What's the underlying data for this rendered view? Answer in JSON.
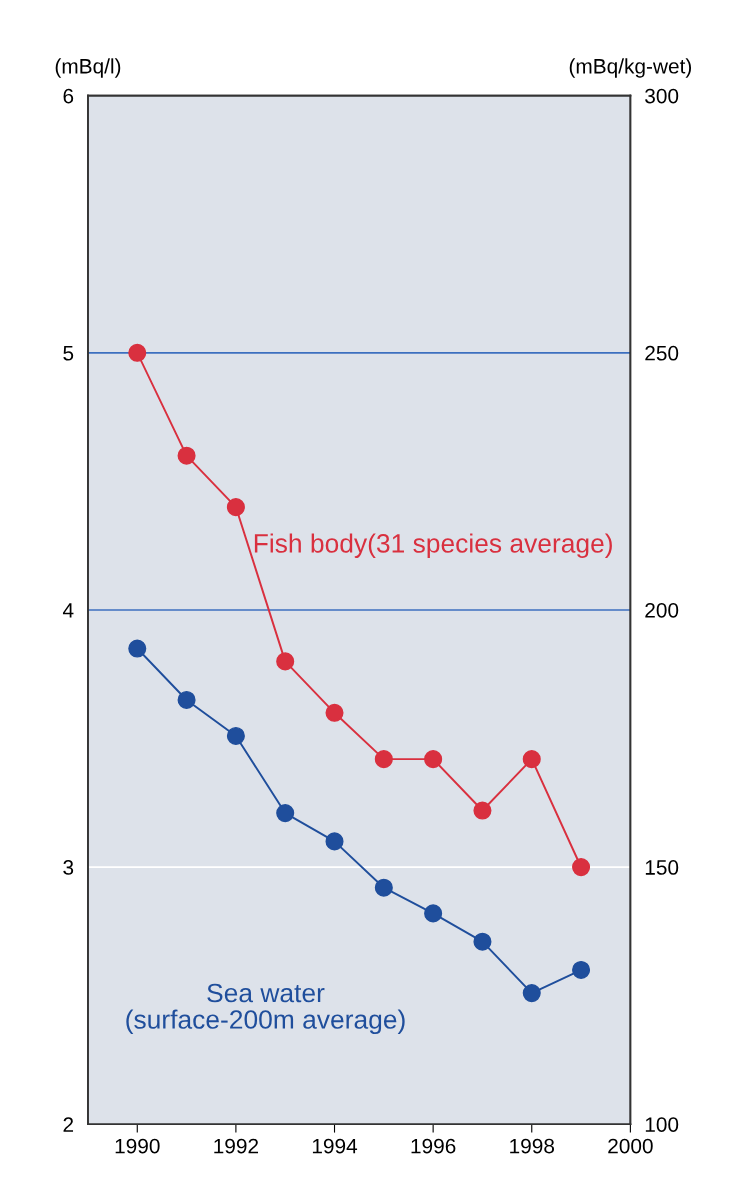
{
  "chart_data": {
    "type": "line",
    "x": [
      1990,
      1991,
      1992,
      1993,
      1994,
      1995,
      1996,
      1997,
      1998,
      1999
    ],
    "xlim": [
      1989,
      2000
    ],
    "xticks": [
      1990,
      1992,
      1994,
      1996,
      1998,
      2000
    ],
    "ylim": [
      2,
      6
    ],
    "yticks": [
      2,
      3,
      4,
      5,
      6
    ],
    "y2lim": [
      100,
      300
    ],
    "y2ticks": [
      100,
      150,
      200,
      250,
      300
    ],
    "ylabel": "(mBq/l)",
    "y2label": "(mBq/kg-wet)",
    "marker": "circle",
    "ref_lines": [
      {
        "axis": "y",
        "value": 5,
        "color": "#3c6fbf"
      },
      {
        "axis": "y",
        "value": 4,
        "color": "#3c6fbf"
      },
      {
        "axis": "y",
        "value": 3,
        "color": "#ffffff"
      }
    ],
    "series": [
      {
        "name": "Fish body(31 species average)",
        "color": "#d9303f",
        "axis": "y2",
        "values": [
          250,
          230,
          220,
          190,
          180,
          171,
          171,
          161,
          171,
          150
        ]
      },
      {
        "name": "Sea water\n(surface-200m average)",
        "color": "#1f4e9c",
        "values": [
          3.85,
          3.65,
          3.51,
          3.21,
          3.1,
          2.92,
          2.82,
          2.71,
          2.51,
          2.6
        ]
      }
    ]
  }
}
